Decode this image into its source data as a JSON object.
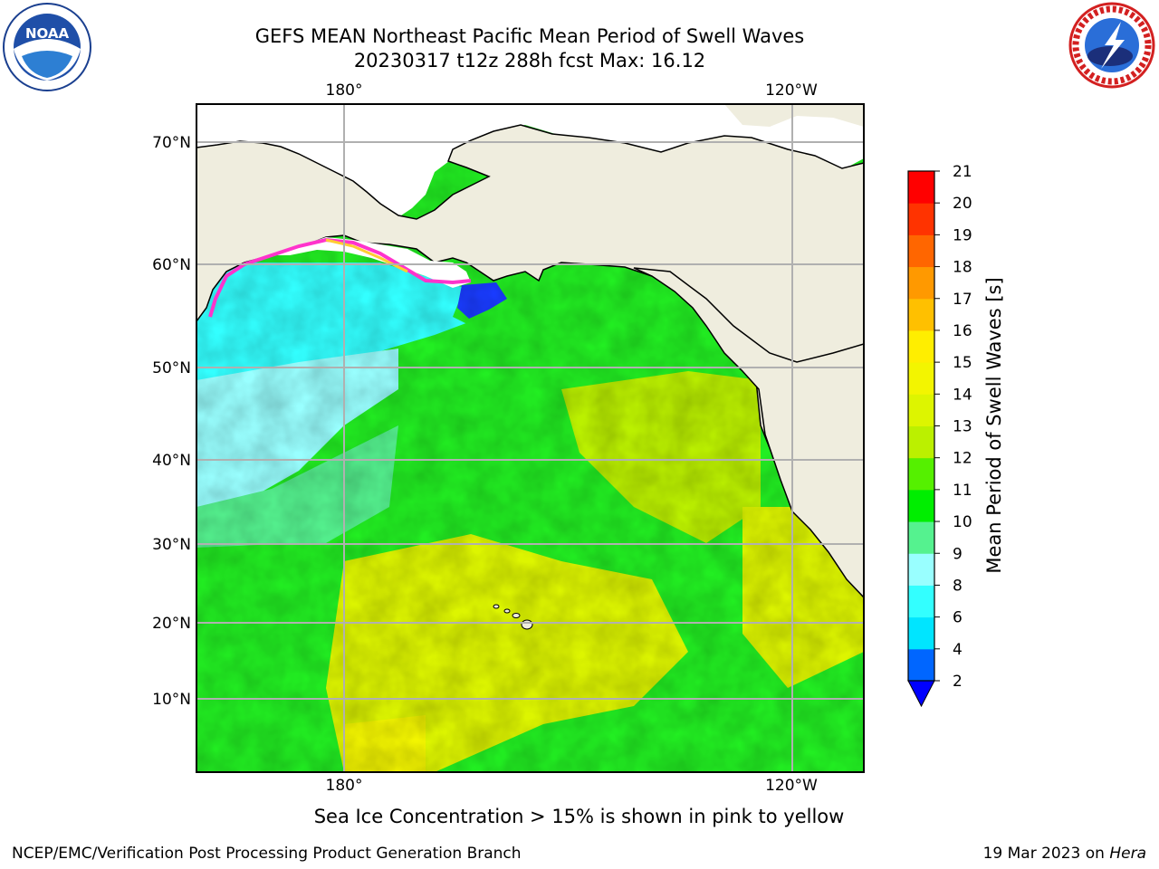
{
  "header": {
    "title_line1": "GEFS MEAN Northeast Pacific Mean Period of Swell Waves",
    "title_line2": "20230317 t12z 288h fcst   Max: 16.12"
  },
  "logos": {
    "left": "noaa-logo",
    "right": "nws-logo"
  },
  "map": {
    "lat_labels": [
      "70°N",
      "60°N",
      "50°N",
      "40°N",
      "30°N",
      "20°N",
      "10°N"
    ],
    "lon_labels_top": [
      "180°",
      "120°W"
    ],
    "lon_labels_bottom": [
      "180°",
      "120°W"
    ],
    "land_color": "#efedde",
    "grid_color": "#b0b0b0"
  },
  "colorbar": {
    "title": "Mean Period of Swell Waves [s]",
    "ticks": [
      "2",
      "4",
      "6",
      "8",
      "9",
      "10",
      "11",
      "12",
      "13",
      "14",
      "15",
      "16",
      "17",
      "18",
      "19",
      "20",
      "21"
    ],
    "colors": [
      "#0066ff",
      "#00e5ff",
      "#33ffff",
      "#99ffff",
      "#55f28f",
      "#00ee00",
      "#55f000",
      "#bbf000",
      "#ddf500",
      "#f3f500",
      "#ffee00",
      "#ffc000",
      "#ff9900",
      "#ff6600",
      "#ff3300",
      "#ff0000"
    ],
    "under_color": "#0000ff"
  },
  "caption": "Sea Ice Concentration > 15% is shown in pink to yellow",
  "footer": {
    "left": "NCEP/EMC/Verification Post Processing Product Generation Branch",
    "right_date": "19 Mar 2023 on ",
    "right_machine": "Hera"
  }
}
